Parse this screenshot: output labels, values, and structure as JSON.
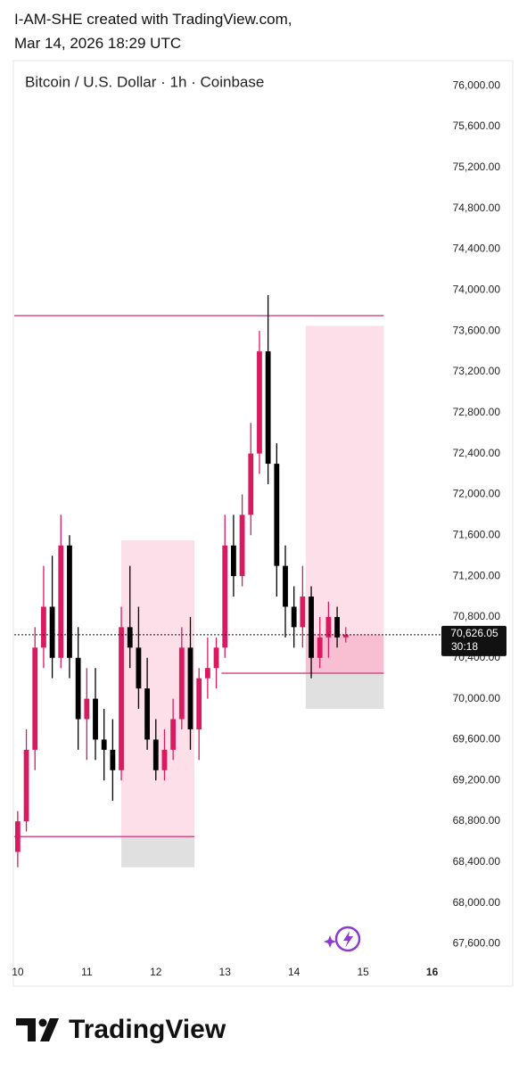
{
  "header": {
    "line1": "I-AM-SHE created with TradingView.com,",
    "line2": "Mar 14, 2026 18:29 UTC"
  },
  "footer": {
    "brand": "TradingView"
  },
  "chart_data": {
    "type": "candlestick",
    "title": "Bitcoin / U.S. Dollar · 1h · Coinbase",
    "up_color": "#d81b60",
    "down_color": "#000000",
    "x": [
      10.0,
      10.125,
      10.25,
      10.375,
      10.5,
      10.625,
      10.75,
      10.875,
      11.0,
      11.125,
      11.25,
      11.375,
      11.5,
      11.625,
      11.75,
      11.875,
      12.0,
      12.125,
      12.25,
      12.375,
      12.5,
      12.625,
      12.75,
      12.875,
      13.0,
      13.125,
      13.25,
      13.375,
      13.5,
      13.625,
      13.75,
      13.875,
      14.0,
      14.125,
      14.25,
      14.375,
      14.5,
      14.625,
      14.75
    ],
    "open": [
      68500,
      68800,
      69500,
      70500,
      70900,
      70400,
      71500,
      70400,
      69800,
      70000,
      69600,
      69500,
      69300,
      70700,
      70500,
      70100,
      69600,
      69300,
      69500,
      69800,
      70500,
      69700,
      70200,
      70300,
      70500,
      71500,
      71200,
      71800,
      72400,
      73400,
      72300,
      71300,
      70900,
      70700,
      71000,
      70400,
      70600,
      70800,
      70600
    ],
    "high": [
      68900,
      69700,
      70700,
      71300,
      71400,
      71800,
      71600,
      70700,
      70300,
      70300,
      69900,
      69800,
      70900,
      71300,
      70900,
      70400,
      69800,
      69700,
      70000,
      70700,
      70800,
      70300,
      70600,
      70600,
      71800,
      71800,
      72000,
      72700,
      73600,
      73950,
      72500,
      71500,
      71100,
      71300,
      71100,
      70800,
      70950,
      70900,
      70700
    ],
    "low": [
      68350,
      68700,
      69300,
      70300,
      70200,
      70300,
      70200,
      69500,
      69400,
      69400,
      69200,
      69000,
      69200,
      70300,
      69900,
      69500,
      69200,
      69200,
      69400,
      69700,
      69500,
      69400,
      70000,
      70100,
      70400,
      71000,
      71100,
      71600,
      72200,
      72100,
      71000,
      70600,
      70500,
      70500,
      70200,
      70300,
      70400,
      70500,
      70550
    ],
    "close": [
      68800,
      69500,
      70500,
      70900,
      70400,
      71500,
      70400,
      69800,
      70000,
      69600,
      69500,
      69300,
      70700,
      70500,
      70100,
      69600,
      69300,
      69500,
      69800,
      70500,
      69700,
      70200,
      70300,
      70500,
      71500,
      71200,
      71800,
      72400,
      73400,
      72300,
      71300,
      70900,
      70700,
      71000,
      70400,
      70600,
      70800,
      70600,
      70626.05
    ],
    "xlim": [
      9.95,
      16.07
    ],
    "xticks": [
      10,
      11,
      12,
      13,
      14,
      15,
      16
    ],
    "ylim": [
      67500,
      76150
    ],
    "yticks": [
      {
        "value": 67600,
        "label": "67,600.00"
      },
      {
        "value": 68000,
        "label": "68,000.00"
      },
      {
        "value": 68400,
        "label": "68,400.00"
      },
      {
        "value": 68800,
        "label": "68,800.00"
      },
      {
        "value": 69200,
        "label": "69,200.00"
      },
      {
        "value": 69600,
        "label": "69,600.00"
      },
      {
        "value": 70000,
        "label": "70,000.00"
      },
      {
        "value": 70400,
        "label": "70,400.00"
      },
      {
        "value": 70800,
        "label": "70,800.00"
      },
      {
        "value": 71200,
        "label": "71,200.00"
      },
      {
        "value": 71600,
        "label": "71,600.00"
      },
      {
        "value": 72000,
        "label": "72,000.00"
      },
      {
        "value": 72400,
        "label": "72,400.00"
      },
      {
        "value": 72800,
        "label": "72,800.00"
      },
      {
        "value": 73200,
        "label": "73,200.00"
      },
      {
        "value": 73600,
        "label": "73,600.00"
      },
      {
        "value": 74000,
        "label": "74,000.00"
      },
      {
        "value": 74400,
        "label": "74,400.00"
      },
      {
        "value": 74800,
        "label": "74,800.00"
      },
      {
        "value": 75200,
        "label": "75,200.00"
      },
      {
        "value": 75600,
        "label": "75,600.00"
      },
      {
        "value": 76000,
        "label": "76,000.00"
      }
    ],
    "last_price": {
      "value": 70626.05,
      "label": "70,626.05",
      "countdown": "30:18"
    },
    "horizontal_lines": [
      {
        "y": 73750,
        "x": [
          9.95,
          15.3
        ],
        "color": "#d0508a"
      },
      {
        "y": 68650,
        "x": [
          9.95,
          12.56
        ],
        "color": "#d0508a"
      },
      {
        "y": 70250,
        "x": [
          12.95,
          15.3
        ],
        "color": "#d0508a"
      }
    ],
    "zones": [
      {
        "x": [
          11.5,
          12.56
        ],
        "y": [
          68650,
          71550
        ],
        "color": "#fcdfe8"
      },
      {
        "x": [
          11.5,
          12.56
        ],
        "y": [
          68350,
          68650
        ],
        "color": "#e0e0e0"
      },
      {
        "x": [
          14.17,
          15.3
        ],
        "y": [
          70250,
          73650
        ],
        "color": "#fcdfe8"
      },
      {
        "x": [
          14.17,
          15.3
        ],
        "y": [
          70250,
          70626.05
        ],
        "color": "#f8bfd2"
      },
      {
        "x": [
          14.17,
          15.3
        ],
        "y": [
          69900,
          70250
        ],
        "color": "#e0e0e0"
      }
    ]
  }
}
